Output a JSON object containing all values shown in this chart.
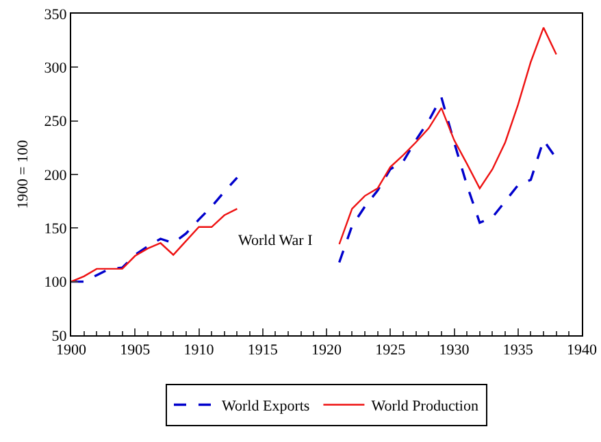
{
  "chart_data": {
    "type": "line",
    "ylabel": "1900 = 100",
    "x": [
      1900,
      1901,
      1902,
      1903,
      1904,
      1905,
      1906,
      1907,
      1908,
      1909,
      1910,
      1911,
      1912,
      1913,
      1914,
      1915,
      1916,
      1917,
      1918,
      1919,
      1920,
      1921,
      1922,
      1923,
      1924,
      1925,
      1926,
      1927,
      1928,
      1929,
      1930,
      1931,
      1932,
      1933,
      1934,
      1935,
      1936,
      1937,
      1938
    ],
    "series": [
      {
        "name": "World Exports",
        "color": "#0000cc",
        "line_style": "dashed",
        "values": [
          100,
          100,
          106,
          112,
          113,
          125,
          133,
          140,
          136,
          145,
          158,
          170,
          184,
          197,
          null,
          null,
          null,
          null,
          null,
          null,
          null,
          118,
          152,
          170,
          185,
          205,
          212,
          232,
          250,
          272,
          230,
          190,
          155,
          160,
          175,
          190,
          195,
          232,
          215
        ]
      },
      {
        "name": "World Production",
        "color": "#ee1111",
        "line_style": "solid",
        "values": [
          100,
          105,
          112,
          112,
          112,
          124,
          131,
          136,
          125,
          138,
          151,
          151,
          162,
          168,
          null,
          null,
          null,
          null,
          null,
          null,
          null,
          135,
          168,
          180,
          187,
          207,
          218,
          230,
          243,
          262,
          232,
          210,
          187,
          205,
          230,
          265,
          305,
          337,
          312
        ]
      }
    ],
    "xlim": [
      1900,
      1940
    ],
    "xticks": [
      1900,
      1905,
      1910,
      1915,
      1920,
      1925,
      1930,
      1935,
      1940
    ],
    "ylim": [
      50,
      350
    ],
    "yticks": [
      50,
      100,
      150,
      200,
      250,
      300,
      350
    ],
    "annotations": [
      "World War I"
    ],
    "grid": false,
    "legend": "bottom",
    "marker": "none"
  }
}
